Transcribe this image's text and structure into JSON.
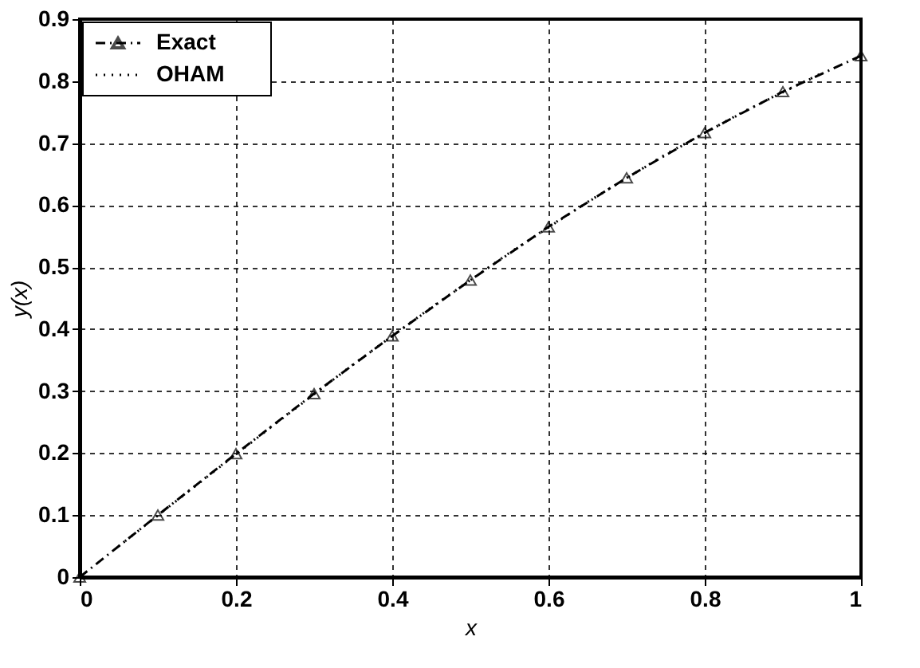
{
  "chart_data": {
    "type": "line",
    "xlabel": "x",
    "ylabel": "y(x)",
    "series": [
      {
        "name": "Exact",
        "color": "#000000",
        "marker": "triangle",
        "line_style": "dashed",
        "x": [
          0,
          0.1,
          0.2,
          0.3,
          0.4,
          0.5,
          0.6,
          0.7,
          0.8,
          0.9,
          1
        ],
        "values": [
          0,
          0.1,
          0.199,
          0.296,
          0.389,
          0.479,
          0.565,
          0.644,
          0.717,
          0.783,
          0.841
        ]
      },
      {
        "name": "OHAM",
        "color": "#000000",
        "marker": "none",
        "line_style": "dotted",
        "x": [
          0.05,
          0.15,
          0.25,
          0.35,
          0.45,
          0.55,
          0.65,
          0.75,
          0.85,
          0.95
        ],
        "values": [
          0.05,
          0.149,
          0.247,
          0.343,
          0.435,
          0.523,
          0.605,
          0.682,
          0.751,
          0.813
        ]
      }
    ],
    "xlim": [
      0,
      1
    ],
    "xticks": [
      0,
      0.2,
      0.4,
      0.6,
      0.8,
      1
    ],
    "ylim": [
      0,
      0.9
    ],
    "yticks": [
      0,
      0.1,
      0.2,
      0.3,
      0.4,
      0.5,
      0.6,
      0.7,
      0.8,
      0.9
    ],
    "grid": true,
    "legend": "top left"
  }
}
